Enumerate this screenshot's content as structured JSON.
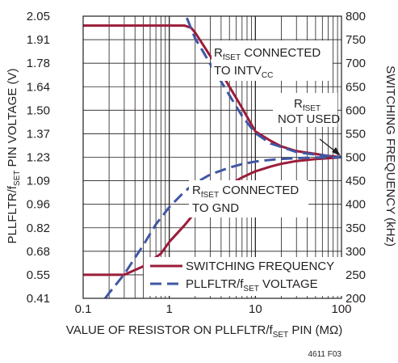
{
  "chart_data": {
    "type": "line",
    "x_scale": "log",
    "xlim": [
      0.1,
      100
    ],
    "ylim_left": [
      0.41,
      2.05
    ],
    "ylim_right": [
      200,
      800
    ],
    "grid": true,
    "legend_position": "bottom-right",
    "x_ticks": [
      "0.1",
      "1",
      "10",
      "100"
    ],
    "y_left_ticks": [
      "2.05",
      "1.91",
      "1.78",
      "1.64",
      "1.50",
      "1.37",
      "1.23",
      "1.09",
      "0.96",
      "0.82",
      "0.68",
      "0.55",
      "0.41"
    ],
    "y_right_ticks": [
      "800",
      "750",
      "700",
      "650",
      "600",
      "550",
      "500",
      "450",
      "400",
      "350",
      "300",
      "250",
      "200"
    ],
    "xlabel": {
      "pre": "VALUE OF RESISTOR ON PLLFLTR/f",
      "sub": "SET",
      "post": " PIN (MΩ)"
    },
    "ylabel_left": {
      "pre": "PLLFLTR/f",
      "sub": "SET",
      "post": " PIN VOLTAGE (V)"
    },
    "ylabel_right": "SWITCHING FREQUENCY (kHz)",
    "annotations": {
      "intvcc_l1": {
        "pre": "R",
        "sub": "fSET",
        "post": " CONNECTED"
      },
      "intvcc_l2": {
        "pre": "TO INTV",
        "sub": "CC"
      },
      "notused_l1": {
        "pre": "R",
        "sub": "fSET"
      },
      "notused_l2": "NOT USED",
      "gnd_l1": {
        "pre": "R",
        "sub": "fSET",
        "post": " CONNECTED"
      },
      "gnd_l2": "TO GND"
    },
    "figure_id": "4611 F03",
    "colors": {
      "frequency": "#9b1c3a",
      "voltage": "#3f57a3",
      "grid": "#231f20"
    },
    "series": [
      {
        "name": "SWITCHING FREQUENCY",
        "axis": "right",
        "branch": "INTVCC",
        "style": "solid",
        "x": [
          0.1,
          0.5,
          1,
          1.5,
          1.8,
          2,
          3,
          4,
          5,
          7,
          10,
          15,
          20,
          30,
          50,
          70,
          100
        ],
        "y": [
          780,
          780,
          780,
          780,
          775,
          765,
          715,
          680,
          650,
          605,
          555,
          535,
          523,
          513,
          507,
          503,
          500
        ]
      },
      {
        "name": "PLLFLTR/fSET VOLTAGE",
        "axis": "left",
        "branch": "INTVCC",
        "style": "dashed",
        "x": [
          1.6,
          2,
          2.5,
          3,
          4,
          5,
          7,
          10,
          15,
          20,
          30,
          50,
          100
        ],
        "y": [
          2.04,
          1.92,
          1.84,
          1.77,
          1.67,
          1.59,
          1.47,
          1.37,
          1.31,
          1.29,
          1.26,
          1.245,
          1.23
        ]
      },
      {
        "name": "SWITCHING FREQUENCY",
        "axis": "right",
        "branch": "GND",
        "style": "solid",
        "x": [
          0.1,
          0.3,
          0.5,
          0.8,
          1,
          1.5,
          2,
          3,
          5,
          7,
          10,
          15,
          20,
          30,
          50,
          70,
          100
        ],
        "y": [
          250,
          250,
          268,
          295,
          320,
          355,
          383,
          410,
          442,
          457,
          470,
          480,
          486,
          492,
          496,
          498,
          500
        ]
      },
      {
        "name": "PLLFLTR/fSET VOLTAGE",
        "axis": "left",
        "branch": "GND",
        "style": "dashed",
        "x": [
          0.18,
          0.2,
          0.3,
          0.5,
          0.7,
          1,
          1.5,
          2,
          3,
          5,
          7,
          10,
          15,
          20,
          30,
          50,
          100
        ],
        "y": [
          0.41,
          0.44,
          0.55,
          0.72,
          0.84,
          0.94,
          1.03,
          1.08,
          1.13,
          1.17,
          1.19,
          1.205,
          1.215,
          1.22,
          1.225,
          1.228,
          1.23
        ]
      }
    ],
    "legend": [
      {
        "label": "SWITCHING FREQUENCY",
        "style": "solid",
        "color": "#9b1c3a"
      },
      {
        "label_pre": "PLLFLTR/f",
        "label_sub": "SET",
        "label_post": " VOLTAGE",
        "style": "dashed",
        "color": "#3f57a3"
      }
    ]
  }
}
